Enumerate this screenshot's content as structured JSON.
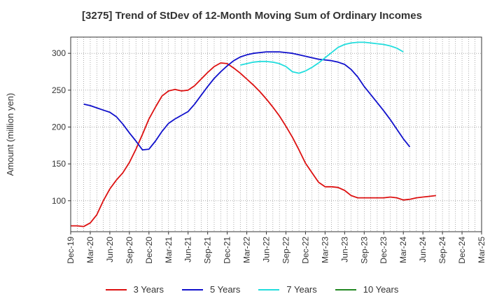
{
  "chart_data": {
    "type": "line",
    "title": "[3275]  Trend of StDev of 12-Month Moving Sum of Ordinary Incomes",
    "ylabel": "Amount (million yen)",
    "xlabel": "",
    "ylim": [
      58,
      322
    ],
    "yticks": [
      100,
      150,
      200,
      250,
      300
    ],
    "xtick_labels": [
      "Dec-19",
      "Mar-20",
      "Jun-20",
      "Sep-20",
      "Dec-20",
      "Mar-21",
      "Jun-21",
      "Sep-21",
      "Dec-21",
      "Mar-22",
      "Jun-22",
      "Sep-22",
      "Dec-22",
      "Mar-23",
      "Jun-23",
      "Sep-23",
      "Dec-23",
      "Mar-24",
      "Jun-24",
      "Sep-24",
      "Dec-24",
      "Mar-25"
    ],
    "grid": true,
    "legend_position": "bottom",
    "series": [
      {
        "name": "3 Years",
        "color": "#dd1111",
        "start_index": 0,
        "values": [
          66,
          66,
          65,
          70,
          81,
          100,
          116,
          128,
          138,
          152,
          170,
          190,
          211,
          227,
          242,
          249,
          251,
          249,
          250,
          256,
          265,
          274,
          282,
          287,
          286,
          280,
          273,
          265,
          257,
          248,
          238,
          227,
          215,
          201,
          186,
          169,
          151,
          138,
          125,
          119,
          119,
          118,
          114,
          107,
          104,
          104,
          104,
          104,
          104,
          105,
          104,
          101,
          102,
          104,
          105,
          106,
          107
        ]
      },
      {
        "name": "5 Years",
        "color": "#1111cc",
        "start_index": 2,
        "values": [
          231,
          229,
          226,
          223,
          220,
          214,
          204,
          192,
          181,
          169,
          170,
          181,
          194,
          205,
          211,
          216,
          221,
          231,
          243,
          255,
          266,
          275,
          283,
          290,
          295,
          298,
          300,
          301,
          302,
          302,
          302,
          301,
          300,
          298,
          296,
          294,
          292,
          291,
          290,
          288,
          285,
          278,
          268,
          255,
          244,
          233,
          222,
          210,
          197,
          184,
          173
        ]
      },
      {
        "name": "7 Years",
        "color": "#22dddd",
        "start_index": 26,
        "values": [
          284,
          286,
          288,
          289,
          289,
          288,
          286,
          282,
          275,
          273,
          276,
          281,
          287,
          294,
          301,
          308,
          312,
          314,
          315,
          315,
          314,
          313,
          312,
          310,
          307,
          302
        ]
      },
      {
        "name": "10 Years",
        "color": "#228822",
        "start_index": 0,
        "values": []
      }
    ]
  }
}
